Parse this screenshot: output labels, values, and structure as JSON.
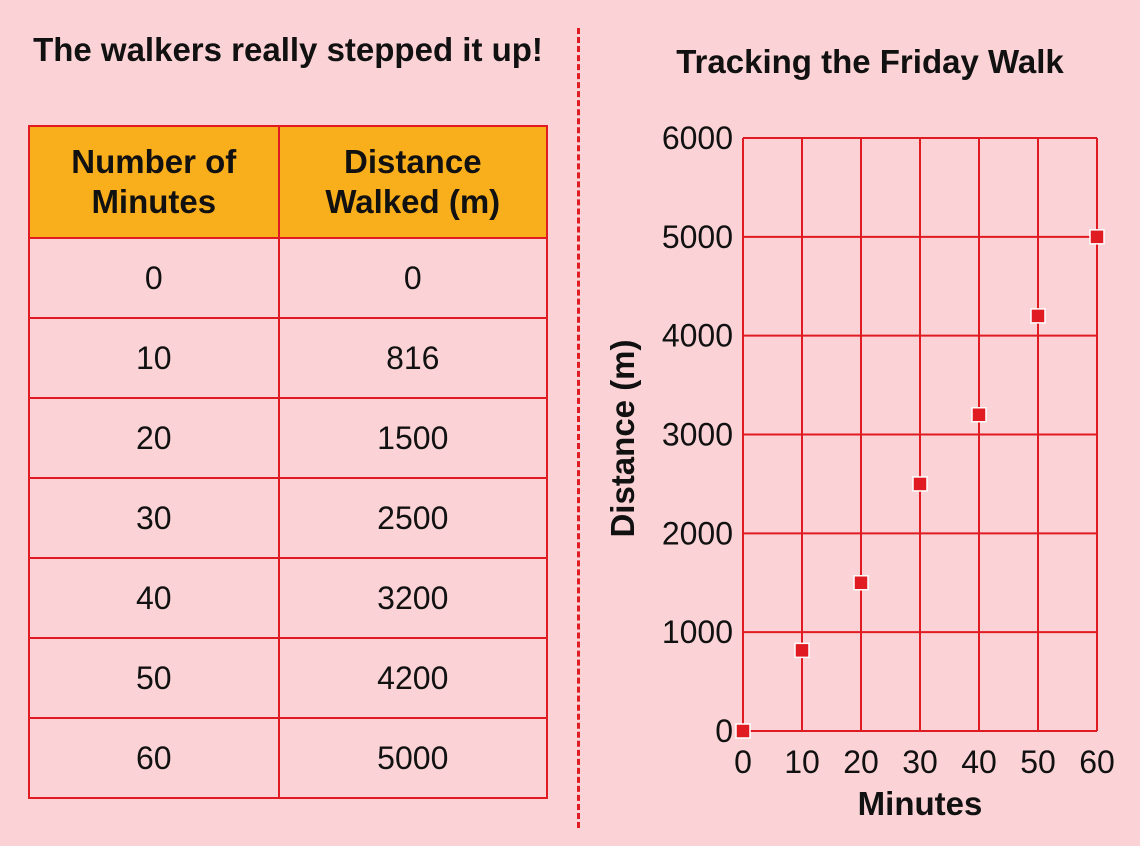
{
  "table": {
    "title": "The walkers really stepped it up!",
    "headers": [
      "Number of Minutes",
      "Distance Walked (m)"
    ],
    "rows": [
      [
        "0",
        "0"
      ],
      [
        "10",
        "816"
      ],
      [
        "20",
        "1500"
      ],
      [
        "30",
        "2500"
      ],
      [
        "40",
        "3200"
      ],
      [
        "50",
        "4200"
      ],
      [
        "60",
        "5000"
      ]
    ]
  },
  "chart_data": {
    "type": "scatter",
    "title": "Tracking the Friday Walk",
    "xlabel": "Minutes",
    "ylabel": "Distance (m)",
    "x": [
      0,
      10,
      20,
      30,
      40,
      50,
      60
    ],
    "y": [
      0,
      816,
      1500,
      2500,
      3200,
      4200,
      5000
    ],
    "xlim": [
      0,
      60
    ],
    "ylim": [
      0,
      6000
    ],
    "xticks": [
      0,
      10,
      20,
      30,
      40,
      50,
      60
    ],
    "yticks": [
      0,
      1000,
      2000,
      3000,
      4000,
      5000,
      6000
    ],
    "grid": true,
    "colors": {
      "grid": "#e11b22",
      "marker": "#e11b22",
      "background": "#fbd3d6"
    }
  },
  "colors": {
    "header_fill": "#f9ae1c",
    "border": "#e11b22",
    "page": "#fbd3d6"
  }
}
